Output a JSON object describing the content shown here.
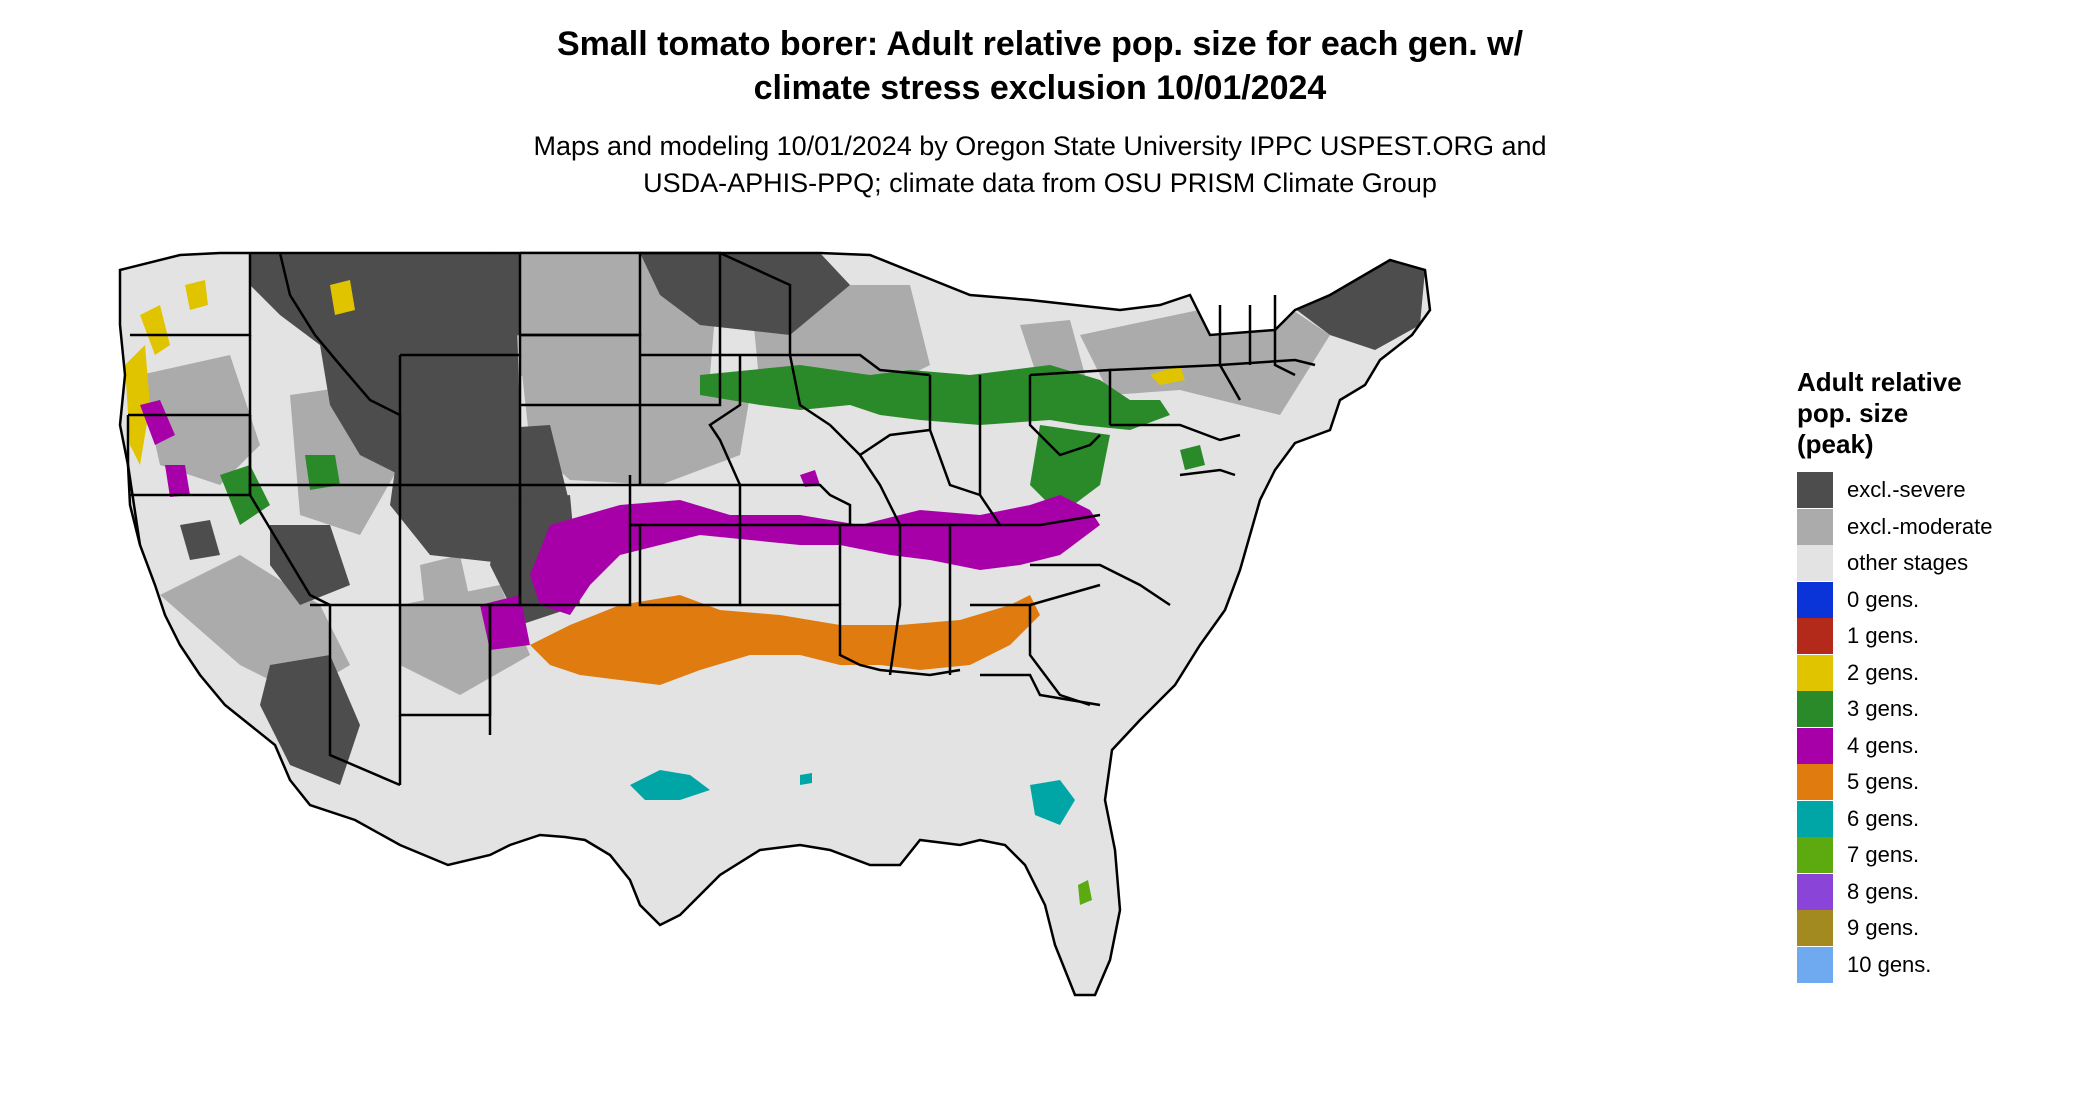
{
  "title": {
    "line1": "Small tomato borer: Adult relative pop. size for each gen. w/",
    "line2": "climate stress exclusion 10/01/2024"
  },
  "subtitle": {
    "line1": "Maps and modeling 10/01/2024 by Oregon State University IPPC USPEST.ORG and",
    "line2": "USDA-APHIS-PPQ; climate data from OSU PRISM Climate Group"
  },
  "legend": {
    "title": [
      "Adult relative",
      "pop. size",
      "(peak)"
    ],
    "items": [
      {
        "label": "excl.-severe",
        "color": "#4d4d4d"
      },
      {
        "label": "excl.-moderate",
        "color": "#ababab"
      },
      {
        "label": "other stages",
        "color": "#e3e3e3"
      },
      {
        "label": "0 gens.",
        "color": "#0a34d8"
      },
      {
        "label": "1 gens.",
        "color": "#b32a1a"
      },
      {
        "label": "2 gens.",
        "color": "#e0c400"
      },
      {
        "label": "3 gens.",
        "color": "#2a8a2a"
      },
      {
        "label": "4 gens.",
        "color": "#a800a8"
      },
      {
        "label": "5 gens.",
        "color": "#e07b10"
      },
      {
        "label": "6 gens.",
        "color": "#00a6a6"
      },
      {
        "label": "7 gens.",
        "color": "#5caa10"
      },
      {
        "label": "8 gens.",
        "color": "#8b44d8"
      },
      {
        "label": "9 gens.",
        "color": "#a38a20"
      },
      {
        "label": "10 gens.",
        "color": "#6faaf0"
      }
    ]
  }
}
